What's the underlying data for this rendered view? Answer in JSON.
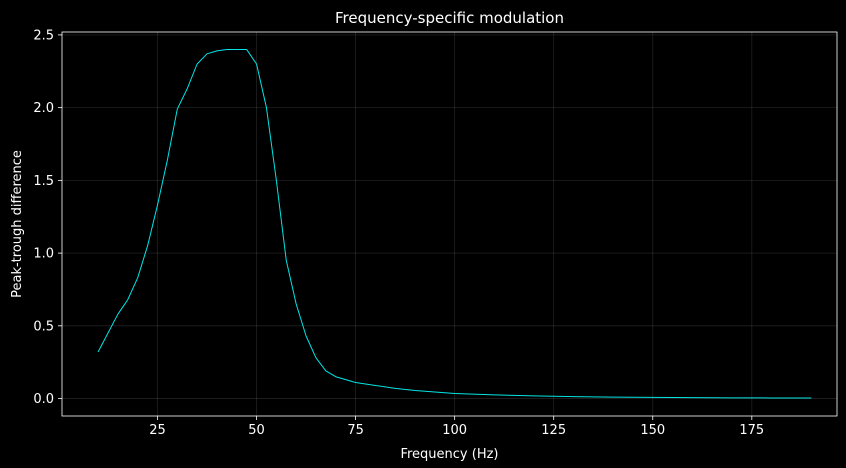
{
  "chart_data": {
    "type": "line",
    "title": "Frequency-specific modulation",
    "xlabel": "Frequency (Hz)",
    "ylabel": "Peak-trough difference",
    "xlim": [
      0.9,
      196.5
    ],
    "ylim": [
      -0.12,
      2.52
    ],
    "xticks": [
      25,
      50,
      75,
      100,
      125,
      150,
      175
    ],
    "yticks": [
      0.0,
      0.5,
      1.0,
      1.5,
      2.0,
      2.5
    ],
    "ytick_labels": [
      "0.0",
      "0.5",
      "1.0",
      "1.5",
      "2.0",
      "2.5"
    ],
    "grid": true,
    "background_color": "#000000",
    "axes_color": "#ffffff",
    "line_color": "#00e5e5",
    "series": [
      {
        "x": [
          10,
          12.5,
          15,
          17.5,
          20,
          22.5,
          25,
          27.5,
          30,
          32.5,
          35,
          37.5,
          40,
          42.5,
          45,
          47.5,
          50,
          52.5,
          55,
          57.5,
          60,
          62.5,
          65,
          67.5,
          70,
          72.5,
          75,
          80,
          85,
          90,
          95,
          100,
          110,
          120,
          130,
          140,
          150,
          160,
          170,
          180,
          190
        ],
        "y": [
          0.32,
          0.45,
          0.58,
          0.68,
          0.83,
          1.05,
          1.33,
          1.64,
          1.99,
          2.13,
          2.3,
          2.37,
          2.39,
          2.4,
          2.4,
          2.4,
          2.3,
          2.0,
          1.5,
          0.95,
          0.65,
          0.43,
          0.28,
          0.19,
          0.15,
          0.13,
          0.11,
          0.09,
          0.07,
          0.055,
          0.045,
          0.035,
          0.025,
          0.018,
          0.013,
          0.01,
          0.008,
          0.006,
          0.005,
          0.004,
          0.004
        ]
      }
    ]
  }
}
